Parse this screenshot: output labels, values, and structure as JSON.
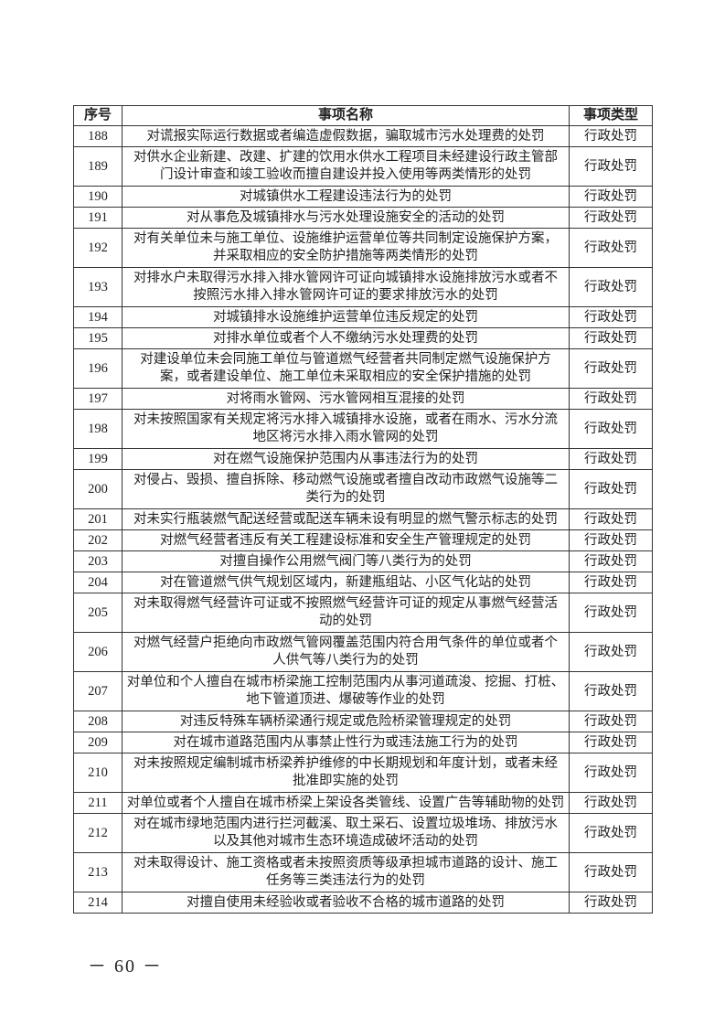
{
  "table": {
    "headers": [
      "序号",
      "事项名称",
      "事项类型"
    ],
    "rows": [
      {
        "no": "188",
        "name": "对谎报实际运行数据或者编造虚假数据，骗取城市污水处理费的处罚",
        "type": "行政处罚"
      },
      {
        "no": "189",
        "name": "对供水企业新建、改建、扩建的饮用水供水工程项目未经建设行政主管部\n门设计审查和竣工验收而擅自建设并投入使用等两类情形的处罚",
        "type": "行政处罚"
      },
      {
        "no": "190",
        "name": "对城镇供水工程建设违法行为的处罚",
        "type": "行政处罚"
      },
      {
        "no": "191",
        "name": "对从事危及城镇排水与污水处理设施安全的活动的处罚",
        "type": "行政处罚"
      },
      {
        "no": "192",
        "name": "对有关单位未与施工单位、设施维护运营单位等共同制定设施保护方案，\n并采取相应的安全防护措施等两类情形的处罚",
        "type": "行政处罚"
      },
      {
        "no": "193",
        "name": "对排水户未取得污水排入排水管网许可证向城镇排水设施排放污水或者不\n按照污水排入排水管网许可证的要求排放污水的处罚",
        "type": "行政处罚"
      },
      {
        "no": "194",
        "name": "对城镇排水设施维护运营单位违反规定的处罚",
        "type": "行政处罚"
      },
      {
        "no": "195",
        "name": "对排水单位或者个人不缴纳污水处理费的处罚",
        "type": "行政处罚"
      },
      {
        "no": "196",
        "name": "对建设单位未会同施工单位与管道燃气经营者共同制定燃气设施保护方\n案，或者建设单位、施工单位未采取相应的安全保护措施的处罚",
        "type": "行政处罚"
      },
      {
        "no": "197",
        "name": "对将雨水管网、污水管网相互混接的处罚",
        "type": "行政处罚"
      },
      {
        "no": "198",
        "name": "对未按照国家有关规定将污水排入城镇排水设施，或者在雨水、污水分流\n地区将污水排入雨水管网的处罚",
        "type": "行政处罚"
      },
      {
        "no": "199",
        "name": "对在燃气设施保护范围内从事违法行为的处罚",
        "type": "行政处罚"
      },
      {
        "no": "200",
        "name": "对侵占、毁损、擅自拆除、移动燃气设施或者擅自改动市政燃气设施等二\n类行为的处罚",
        "type": "行政处罚"
      },
      {
        "no": "201",
        "name": "对未实行瓶装燃气配送经营或配送车辆未设有明显的燃气警示标志的处罚",
        "type": "行政处罚"
      },
      {
        "no": "202",
        "name": "对燃气经营者违反有关工程建设标准和安全生产管理规定的处罚",
        "type": "行政处罚"
      },
      {
        "no": "203",
        "name": "对擅自操作公用燃气阀门等八类行为的处罚",
        "type": "行政处罚"
      },
      {
        "no": "204",
        "name": "对在管道燃气供气规划区域内，新建瓶组站、小区气化站的处罚",
        "type": "行政处罚"
      },
      {
        "no": "205",
        "name": "对未取得燃气经营许可证或不按照燃气经营许可证的规定从事燃气经营活\n动的处罚",
        "type": "行政处罚"
      },
      {
        "no": "206",
        "name": "对燃气经营户拒绝向市政燃气管网覆盖范围内符合用气条件的单位或者个\n人供气等八类行为的处罚",
        "type": "行政处罚"
      },
      {
        "no": "207",
        "name": "对单位和个人擅自在城市桥梁施工控制范围内从事河道疏浚、挖掘、打桩、\n地下管道顶进、爆破等作业的处罚",
        "type": "行政处罚"
      },
      {
        "no": "208",
        "name": "对违反特殊车辆桥梁通行规定或危险桥梁管理规定的处罚",
        "type": "行政处罚"
      },
      {
        "no": "209",
        "name": "对在城市道路范围内从事禁止性行为或违法施工行为的处罚",
        "type": "行政处罚"
      },
      {
        "no": "210",
        "name": "对未按照规定编制城市桥梁养护维修的中长期规划和年度计划，或者未经\n批准即实施的处罚",
        "type": "行政处罚"
      },
      {
        "no": "211",
        "name": "对单位或者个人擅自在城市桥梁上架设各类管线、设置广告等辅助物的处罚",
        "type": "行政处罚"
      },
      {
        "no": "212",
        "name": "对在城市绿地范围内进行拦河截溪、取土采石、设置垃圾堆场、排放污水\n以及其他对城市生态环境造成破坏活动的处罚",
        "type": "行政处罚"
      },
      {
        "no": "213",
        "name": "对未取得设计、施工资格或者未按照资质等级承担城市道路的设计、施工\n任务等三类违法行为的处罚",
        "type": "行政处罚"
      },
      {
        "no": "214",
        "name": "对擅自使用未经验收或者验收不合格的城市道路的处罚",
        "type": "行政处罚"
      }
    ]
  },
  "page_number": "－ 60 －"
}
